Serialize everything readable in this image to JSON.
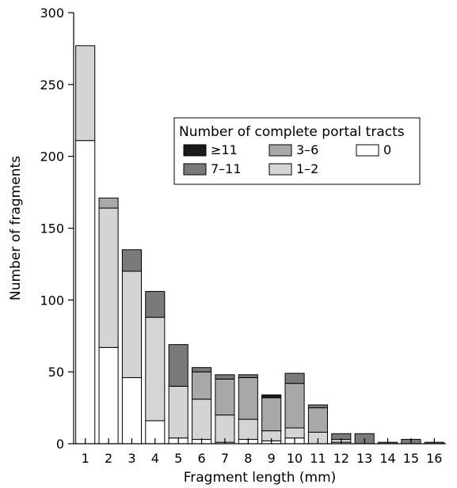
{
  "chart_data": {
    "type": "bar",
    "stacked": true,
    "xlabel": "Fragment length (mm)",
    "ylabel": "Number of fragments",
    "ylim": [
      0,
      300
    ],
    "yticks": [
      0,
      50,
      100,
      150,
      200,
      250,
      300
    ],
    "categories": [
      "1",
      "2",
      "3",
      "4",
      "5",
      "6",
      "7",
      "8",
      "9",
      "10",
      "11",
      "12",
      "13",
      "14",
      "15",
      "16"
    ],
    "legend": {
      "title": "Number of complete portal tracts",
      "placement": "upper-right inside plot",
      "entries": [
        "≥11",
        "3–6",
        "0",
        "7–11",
        "1–2"
      ]
    },
    "series": [
      {
        "name": "0",
        "color": "#ffffff",
        "values": [
          211,
          67,
          46,
          16,
          4,
          3,
          1,
          3,
          2,
          4,
          0,
          1,
          0,
          0,
          0,
          0
        ]
      },
      {
        "name": "1–2",
        "color": "#d4d4d4",
        "values": [
          66,
          97,
          74,
          72,
          36,
          28,
          19,
          14,
          7,
          7,
          8,
          2,
          0,
          0,
          0,
          0
        ]
      },
      {
        "name": "3–6",
        "color": "#a8a8a8",
        "values": [
          0,
          7,
          0,
          0,
          0,
          19,
          25,
          29,
          23,
          31,
          17,
          0,
          0,
          0,
          0,
          0
        ]
      },
      {
        "name": "7–11",
        "color": "#7a7a7a",
        "values": [
          0,
          0,
          15,
          18,
          29,
          3,
          3,
          2,
          0,
          7,
          2,
          4,
          7,
          1,
          3,
          1
        ]
      },
      {
        "name": "≥11",
        "color": "#1a1a1a",
        "values": [
          0,
          0,
          0,
          0,
          0,
          0,
          0,
          0,
          2,
          0,
          0,
          0,
          0,
          0,
          0,
          0
        ]
      }
    ]
  }
}
